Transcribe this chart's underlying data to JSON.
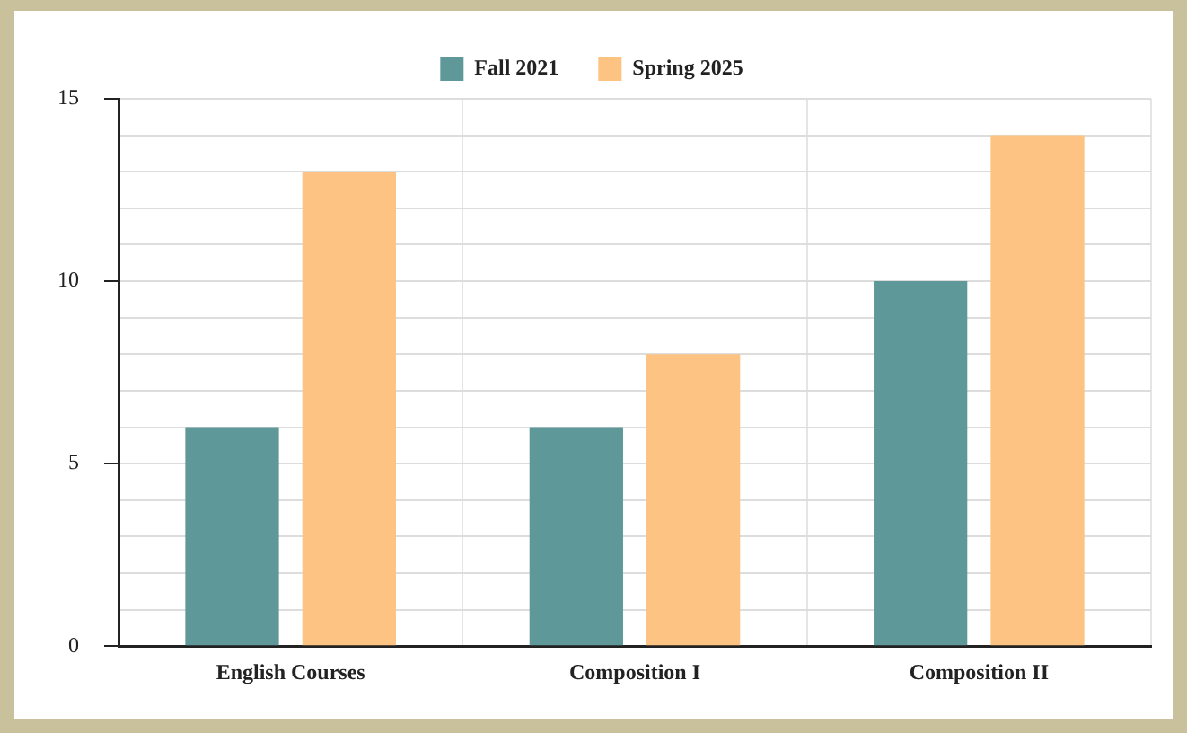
{
  "chart_data": {
    "type": "bar",
    "categories": [
      "English Courses",
      "Composition I",
      "Composition II"
    ],
    "series": [
      {
        "name": "Fall 2021",
        "color": "#5f9898",
        "values": [
          6,
          6,
          10
        ]
      },
      {
        "name": "Spring 2025",
        "color": "#fcc382",
        "values": [
          13,
          8,
          14
        ]
      }
    ],
    "ylim": [
      0,
      15
    ],
    "yticks": [
      0,
      {
        "value": 1,
        "label": null
      },
      {
        "value": 2,
        "label": null
      },
      {
        "value": 3,
        "label": null
      },
      {
        "value": 4,
        "label": null
      },
      5,
      {
        "value": 6,
        "label": null
      },
      {
        "value": 7,
        "label": null
      },
      {
        "value": 8,
        "label": null
      },
      {
        "value": 9,
        "label": null
      },
      10,
      {
        "value": 11,
        "label": null
      },
      {
        "value": 12,
        "label": null
      },
      {
        "value": 13,
        "label": null
      },
      {
        "value": 14,
        "label": null
      },
      15
    ],
    "grid": true,
    "legend": "top"
  }
}
